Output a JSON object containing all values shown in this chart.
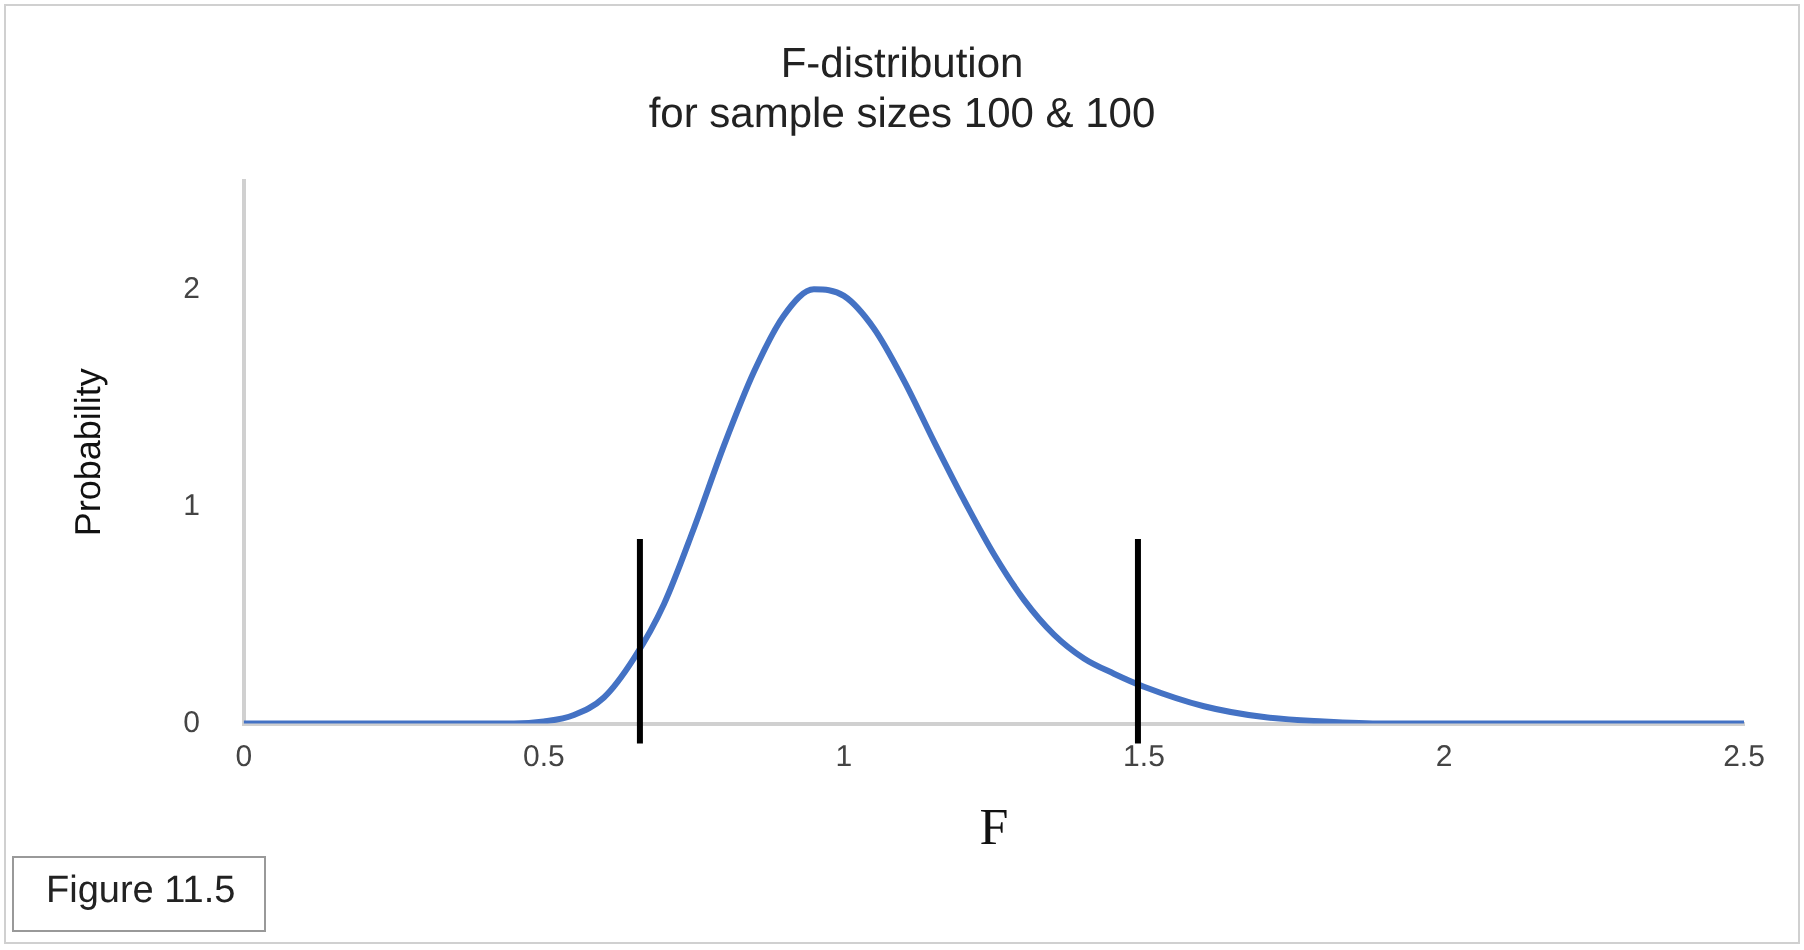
{
  "chart_data": {
    "type": "line",
    "title": "F-distribution\nfor sample sizes 100 & 100",
    "xlabel": "F",
    "ylabel": "Probability",
    "x": [
      0,
      0.45,
      0.5,
      0.55,
      0.6,
      0.65,
      0.7,
      0.75,
      0.8,
      0.85,
      0.9,
      0.95,
      1.0,
      1.05,
      1.1,
      1.15,
      1.2,
      1.25,
      1.3,
      1.35,
      1.4,
      1.45,
      1.5,
      1.6,
      1.7,
      1.8,
      1.9,
      2.0,
      2.5
    ],
    "series": [
      {
        "color": "#4472c4",
        "values": [
          0,
          0,
          0.01,
          0.04,
          0.12,
          0.3,
          0.55,
          0.9,
          1.28,
          1.62,
          1.88,
          2.0,
          1.97,
          1.82,
          1.58,
          1.3,
          1.03,
          0.78,
          0.57,
          0.41,
          0.3,
          0.23,
          0.17,
          0.08,
          0.03,
          0.01,
          0,
          0,
          0
        ]
      }
    ],
    "xlim": [
      0,
      2.5
    ],
    "xticks": [
      0,
      0.5,
      1,
      1.5,
      2,
      2.5
    ],
    "ylim": [
      0,
      2.5
    ],
    "yticks": [
      0,
      1,
      2
    ],
    "ref_lines": [
      {
        "axis": "x",
        "value": 0.66,
        "color": "#000000"
      },
      {
        "axis": "x",
        "value": 1.49,
        "color": "#000000"
      }
    ],
    "annotations": [
      "Figure 11.5"
    ],
    "grid": false,
    "legend": false,
    "marker": "none",
    "line_style": "solid"
  }
}
